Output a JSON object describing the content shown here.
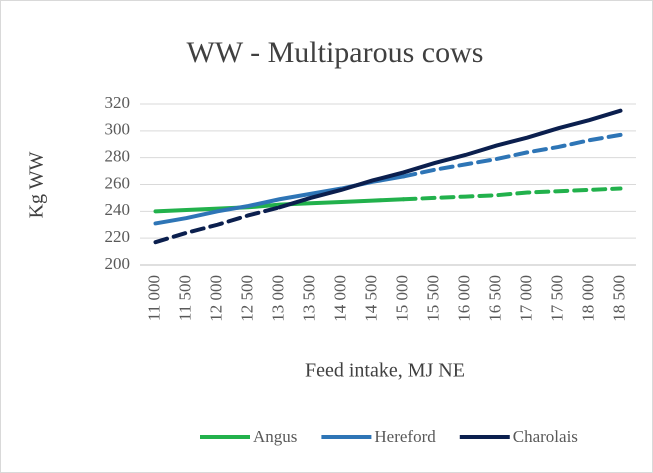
{
  "chart_data": {
    "type": "line",
    "title": "WW - Multiparous cows",
    "ylabel": "Kg WW",
    "xlabel": "Feed intake, MJ NE",
    "categories": [
      "11 000",
      "11 500",
      "12 000",
      "12 500",
      "13 000",
      "13 500",
      "14 000",
      "14 500",
      "15 000",
      "15 500",
      "16 000",
      "16 500",
      "17 000",
      "17 500",
      "18 000",
      "18 500"
    ],
    "series": [
      {
        "name": "Angus",
        "color": "#22b14c",
        "solid_range": [
          0,
          8
        ],
        "values": [
          240,
          241,
          242,
          243,
          245,
          246,
          247,
          248,
          249,
          250,
          251,
          252,
          254,
          255,
          256,
          257
        ]
      },
      {
        "name": "Hereford",
        "color": "#2e75b6",
        "solid_range": [
          0,
          8
        ],
        "values": [
          231,
          235,
          240,
          244,
          249,
          253,
          257,
          262,
          266,
          271,
          275,
          279,
          284,
          288,
          293,
          297
        ]
      },
      {
        "name": "Charolais",
        "color": "#0b1f4e",
        "solid_range": [
          4,
          15
        ],
        "values": [
          217,
          224,
          230,
          237,
          243,
          250,
          256,
          263,
          269,
          276,
          282,
          289,
          295,
          302,
          308,
          315
        ]
      }
    ],
    "ylim": [
      200,
      320
    ],
    "yticks": [
      200,
      220,
      240,
      260,
      280,
      300,
      320
    ],
    "grid": true,
    "legend": "bottom"
  }
}
